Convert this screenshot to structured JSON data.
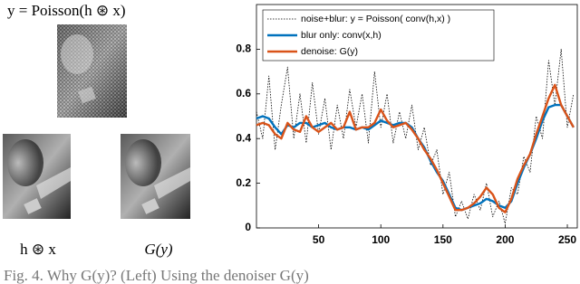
{
  "figure": {
    "top_label": "y = Poisson(h ⊛ x)",
    "left_label": "h ⊛ x",
    "right_label": "G(y)"
  },
  "caption": "Fig. 4. Why G(y)? (Left) Using the denoiser G(y)",
  "chart_data": {
    "type": "line",
    "x": [
      0,
      5,
      10,
      15,
      20,
      25,
      30,
      35,
      40,
      45,
      50,
      55,
      60,
      65,
      70,
      75,
      80,
      85,
      90,
      95,
      100,
      105,
      110,
      115,
      120,
      125,
      130,
      135,
      140,
      145,
      150,
      155,
      160,
      165,
      170,
      175,
      180,
      185,
      190,
      195,
      200,
      205,
      210,
      215,
      220,
      225,
      230,
      235,
      240,
      245,
      250,
      255
    ],
    "series": [
      {
        "name": "noise+blur: y = Poisson( conv(h,x) )",
        "color": "#000000",
        "style": "dotted",
        "values": [
          0.52,
          0.4,
          0.68,
          0.35,
          0.55,
          0.72,
          0.4,
          0.6,
          0.38,
          0.65,
          0.42,
          0.58,
          0.35,
          0.55,
          0.4,
          0.62,
          0.45,
          0.6,
          0.38,
          0.7,
          0.45,
          0.6,
          0.38,
          0.52,
          0.4,
          0.55,
          0.35,
          0.45,
          0.28,
          0.35,
          0.15,
          0.25,
          0.05,
          0.12,
          0.04,
          0.15,
          0.08,
          0.2,
          0.05,
          0.12,
          0.02,
          0.18,
          0.15,
          0.32,
          0.25,
          0.5,
          0.4,
          0.75,
          0.55,
          0.8,
          0.45,
          0.6
        ]
      },
      {
        "name": "blur only: conv(x,h)",
        "color": "#0072bd",
        "style": "solid",
        "values": [
          0.49,
          0.5,
          0.49,
          0.45,
          0.42,
          0.46,
          0.45,
          0.47,
          0.47,
          0.45,
          0.46,
          0.47,
          0.45,
          0.44,
          0.45,
          0.45,
          0.44,
          0.45,
          0.44,
          0.46,
          0.48,
          0.47,
          0.46,
          0.47,
          0.47,
          0.45,
          0.4,
          0.36,
          0.3,
          0.25,
          0.21,
          0.15,
          0.09,
          0.08,
          0.09,
          0.1,
          0.11,
          0.13,
          0.12,
          0.1,
          0.09,
          0.12,
          0.2,
          0.27,
          0.33,
          0.4,
          0.48,
          0.54,
          0.55,
          0.55,
          0.5,
          0.45
        ]
      },
      {
        "name": "denoise: G(y)",
        "color": "#d95319",
        "style": "solid",
        "values": [
          0.46,
          0.47,
          0.46,
          0.42,
          0.4,
          0.47,
          0.44,
          0.43,
          0.5,
          0.45,
          0.43,
          0.45,
          0.47,
          0.44,
          0.45,
          0.52,
          0.44,
          0.45,
          0.45,
          0.47,
          0.53,
          0.48,
          0.45,
          0.46,
          0.47,
          0.44,
          0.4,
          0.35,
          0.31,
          0.26,
          0.2,
          0.14,
          0.08,
          0.08,
          0.09,
          0.11,
          0.14,
          0.18,
          0.15,
          0.09,
          0.07,
          0.13,
          0.22,
          0.28,
          0.33,
          0.42,
          0.5,
          0.58,
          0.64,
          0.55,
          0.5,
          0.45
        ]
      }
    ],
    "xlim": [
      0,
      258
    ],
    "ylim": [
      0,
      1
    ],
    "xticks": [
      50,
      100,
      150,
      200,
      250
    ],
    "yticks": [
      0,
      0.2,
      0.4,
      0.6,
      0.8
    ],
    "legend": "upper-left"
  }
}
